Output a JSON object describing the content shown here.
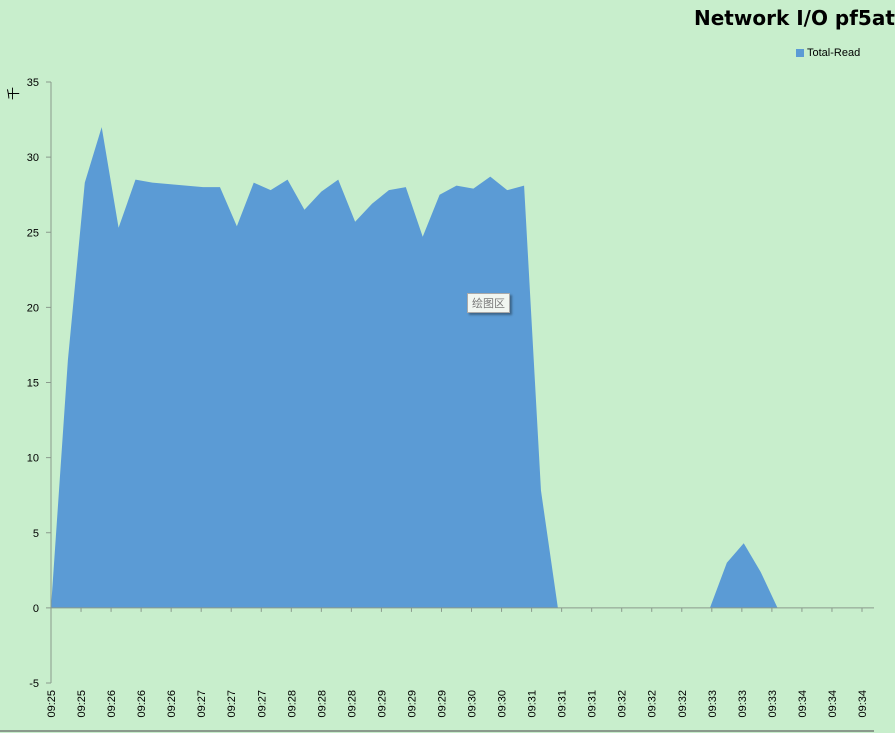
{
  "chart_data": {
    "type": "area",
    "title": "Network I/O pf5at",
    "ylabel": "千",
    "ylim": [
      -5,
      35
    ],
    "yticks": [
      -5,
      0,
      5,
      10,
      15,
      20,
      25,
      30,
      35
    ],
    "grid": false,
    "legend_position": "top-right",
    "x": [
      "09:25",
      "09:25",
      "09:25",
      "09:25",
      "09:26",
      "09:26",
      "09:26",
      "09:26",
      "09:26",
      "09:27",
      "09:27",
      "09:27",
      "09:27",
      "09:27",
      "09:28",
      "09:28",
      "09:28",
      "09:28",
      "09:28",
      "09:29",
      "09:29",
      "09:29",
      "09:29",
      "09:29",
      "09:30",
      "09:30",
      "09:30",
      "09:30",
      "09:30",
      "09:31",
      "09:31",
      "09:31",
      "09:31",
      "09:31",
      "09:32",
      "09:32",
      "09:32",
      "09:32",
      "09:32",
      "09:33",
      "09:33",
      "09:33",
      "09:33",
      "09:33",
      "09:34",
      "09:34",
      "09:34",
      "09:34",
      "09:34"
    ],
    "xtick_labels": [
      "09:25",
      "09:25",
      "09:26",
      "09:26",
      "09:26",
      "09:27",
      "09:27",
      "09:27",
      "09:28",
      "09:28",
      "09:28",
      "09:29",
      "09:29",
      "09:29",
      "09:30",
      "09:30",
      "09:31",
      "09:31",
      "09:31",
      "09:32",
      "09:32",
      "09:32",
      "09:33",
      "09:33",
      "09:33",
      "09:34",
      "09:34",
      "09:34"
    ],
    "series": [
      {
        "name": "Total-Read",
        "color": "#5b9bd5",
        "values": [
          0,
          16.5,
          28.3,
          32.0,
          25.3,
          28.5,
          28.3,
          28.2,
          28.1,
          28.0,
          28.0,
          25.4,
          28.3,
          27.8,
          28.5,
          26.5,
          27.7,
          28.5,
          25.7,
          26.9,
          27.8,
          28.0,
          24.7,
          27.5,
          28.1,
          27.9,
          28.7,
          27.8,
          28.1,
          7.8,
          0,
          0,
          0,
          0,
          0,
          0,
          0,
          0,
          0,
          0,
          3.0,
          4.3,
          2.4,
          0,
          0,
          0,
          0,
          0,
          0
        ]
      }
    ]
  },
  "plot_area_label": "绘图区",
  "colors": {
    "background": "#c8eecc",
    "series": "#5b9bd5",
    "axis": "#8a9a8c"
  }
}
